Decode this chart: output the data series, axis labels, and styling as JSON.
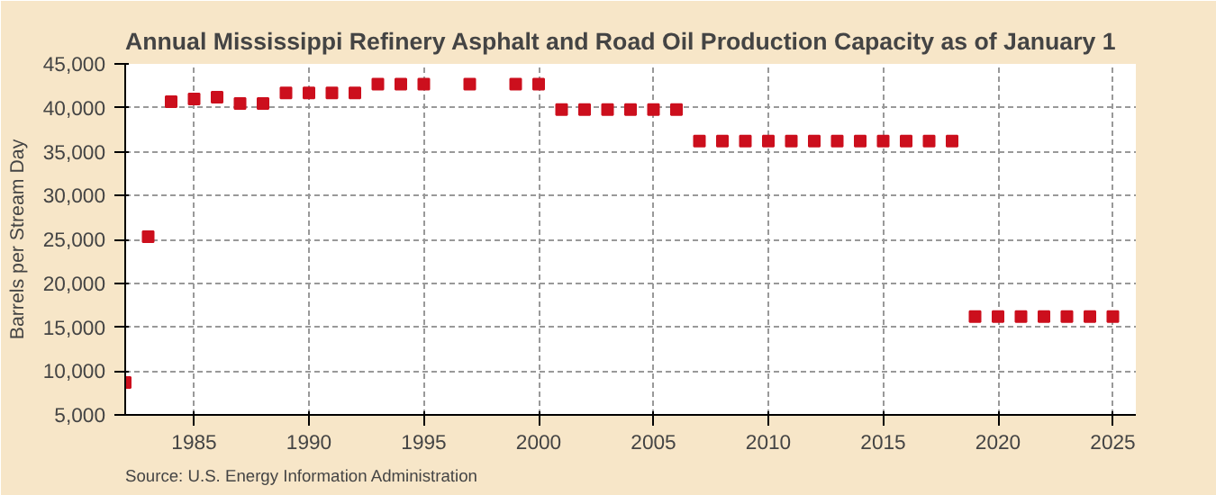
{
  "chart_data": {
    "type": "scatter",
    "title": "Annual Mississippi Refinery Asphalt and Road Oil Production Capacity as of January 1",
    "ylabel": "Barrels per Stream Day",
    "annotations": [
      "Source: U.S. Energy Information Administration"
    ],
    "x": [
      1982,
      1983,
      1984,
      1985,
      1986,
      1987,
      1988,
      1989,
      1990,
      1991,
      1992,
      1993,
      1994,
      1995,
      1997,
      1999,
      2000,
      2001,
      2002,
      2003,
      2004,
      2005,
      2006,
      2007,
      2008,
      2009,
      2010,
      2011,
      2012,
      2013,
      2014,
      2015,
      2016,
      2017,
      2018,
      2019,
      2020,
      2021,
      2022,
      2023,
      2024,
      2025
    ],
    "series": [
      {
        "color": "#cc0f1d",
        "values": [
          8700,
          25300,
          40700,
          41000,
          41200,
          40500,
          40500,
          41700,
          41700,
          41700,
          41700,
          42700,
          42700,
          42700,
          42700,
          42700,
          42700,
          39800,
          39800,
          39800,
          39800,
          39800,
          39800,
          36200,
          36200,
          36200,
          36200,
          36200,
          36200,
          36200,
          36200,
          36200,
          36200,
          36200,
          36200,
          16200,
          16200,
          16200,
          16200,
          16200,
          16200,
          16200
        ]
      }
    ],
    "xlim": [
      1982,
      2026
    ],
    "xticks": [
      1985,
      1990,
      1995,
      2000,
      2005,
      2010,
      2015,
      2020,
      2025
    ],
    "ylim": [
      5000,
      45000
    ],
    "yticks": [
      {
        "value": 5000,
        "label": "5,000"
      },
      {
        "value": 10000,
        "label": "10,000"
      },
      {
        "value": 15000,
        "label": "15,000"
      },
      {
        "value": 20000,
        "label": "20,000"
      },
      {
        "value": 25000,
        "label": "25,000"
      },
      {
        "value": 30000,
        "label": "30,000"
      },
      {
        "value": 35000,
        "label": "35,000"
      },
      {
        "value": 40000,
        "label": "40,000"
      },
      {
        "value": 45000,
        "label": "45,000"
      }
    ],
    "grid": true,
    "marker": "square"
  }
}
